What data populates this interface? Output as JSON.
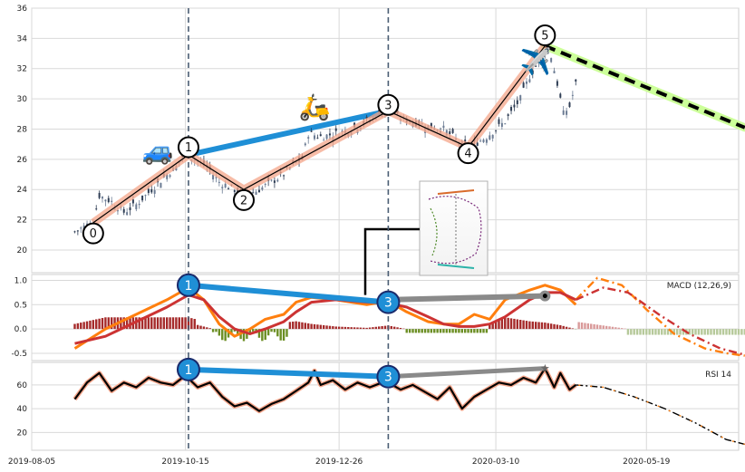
{
  "chart_data": [
    {
      "type": "candlestick",
      "title": "",
      "xlabel": "",
      "ylabel": "",
      "x_tick_labels": [
        "2019-08-05",
        "2019-10-15",
        "2019-12-26",
        "2020-03-10",
        "2020-05-19"
      ],
      "y_ticks": [
        20,
        22,
        24,
        26,
        28,
        30,
        32,
        34,
        36
      ],
      "ylim": [
        18.5,
        36
      ],
      "grid": true,
      "close_path": [
        [
          0,
          21.2
        ],
        [
          6,
          21.9
        ],
        [
          8,
          23.6
        ],
        [
          12,
          23.2
        ],
        [
          16,
          22.5
        ],
        [
          20,
          23.0
        ],
        [
          25,
          24.0
        ],
        [
          30,
          25.0
        ],
        [
          33,
          25.5
        ],
        [
          36,
          26.5
        ],
        [
          39,
          26.0
        ],
        [
          43,
          25.5
        ],
        [
          47,
          24.5
        ],
        [
          52,
          24.0
        ],
        [
          56,
          23.6
        ],
        [
          60,
          24.0
        ],
        [
          64,
          24.5
        ],
        [
          68,
          25.0
        ],
        [
          72,
          25.8
        ],
        [
          74,
          26.0
        ],
        [
          76,
          27.7
        ],
        [
          80,
          27.5
        ],
        [
          85,
          27.7
        ],
        [
          90,
          28.0
        ],
        [
          95,
          28.5
        ],
        [
          99,
          29.0
        ],
        [
          103,
          29.2
        ],
        [
          105,
          28.8
        ],
        [
          110,
          28.5
        ],
        [
          115,
          28.2
        ],
        [
          120,
          28.0
        ],
        [
          123,
          27.5
        ],
        [
          127,
          26.8
        ],
        [
          130,
          27.0
        ],
        [
          134,
          27.5
        ],
        [
          140,
          28.5
        ],
        [
          145,
          30.0
        ],
        [
          148,
          31.5
        ],
        [
          151,
          32.5
        ],
        [
          153,
          33.3
        ],
        [
          155,
          32.8
        ],
        [
          157,
          31.0
        ],
        [
          159,
          29.0
        ],
        [
          161,
          29.5
        ],
        [
          163,
          31.0
        ]
      ],
      "wave_points": [
        {
          "label": "0",
          "date_index": 6,
          "value": 21.1
        },
        {
          "label": "1",
          "date_index": 37,
          "value": 26.8
        },
        {
          "label": "2",
          "date_index": 55,
          "value": 23.3
        },
        {
          "label": "3",
          "date_index": 102,
          "value": 29.6
        },
        {
          "label": "4",
          "date_index": 128,
          "value": 26.4
        },
        {
          "label": "5",
          "date_index": 153,
          "value": 34.2
        }
      ],
      "trend_line": [
        [
          37,
          26.3
        ],
        [
          102,
          29.2
        ]
      ],
      "projection": [
        [
          153,
          33.5
        ],
        [
          218,
          28.1
        ]
      ],
      "events": [
        {
          "icon": "car-icon",
          "glyph": "🚙",
          "date_index": 27,
          "value": 26.0
        },
        {
          "icon": "scooter-icon",
          "glyph": "🛵",
          "date_index": 78,
          "value": 28.9
        },
        {
          "icon": "airplane-icon",
          "glyph": "✈️",
          "date_index": 150,
          "value": 31.9
        }
      ],
      "vertical_markers": [
        37,
        102
      ]
    },
    {
      "type": "line",
      "label": "MACD (12,26,9)",
      "y_ticks": [
        -0.5,
        0.0,
        0.5,
        1.0
      ],
      "ylim": [
        -0.65,
        1.12
      ],
      "series": [
        {
          "color": "#ff7f0e",
          "values": [
            [
              0,
              -0.4
            ],
            [
              10,
              0.0
            ],
            [
              20,
              0.3
            ],
            [
              30,
              0.6
            ],
            [
              37,
              0.85
            ],
            [
              42,
              0.6
            ],
            [
              47,
              0.1
            ],
            [
              52,
              -0.15
            ],
            [
              57,
              0.0
            ],
            [
              62,
              0.2
            ],
            [
              68,
              0.3
            ],
            [
              72,
              0.55
            ],
            [
              77,
              0.65
            ],
            [
              85,
              0.6
            ],
            [
              95,
              0.5
            ],
            [
              102,
              0.57
            ],
            [
              108,
              0.35
            ],
            [
              115,
              0.15
            ],
            [
              120,
              0.1
            ],
            [
              125,
              0.1
            ],
            [
              130,
              0.3
            ],
            [
              135,
              0.2
            ],
            [
              140,
              0.6
            ],
            [
              148,
              0.8
            ],
            [
              153,
              0.9
            ],
            [
              158,
              0.8
            ],
            [
              163,
              0.5
            ]
          ]
        },
        {
          "color": "#cc3333",
          "values": [
            [
              0,
              -0.3
            ],
            [
              10,
              -0.15
            ],
            [
              20,
              0.15
            ],
            [
              30,
              0.45
            ],
            [
              37,
              0.7
            ],
            [
              42,
              0.6
            ],
            [
              47,
              0.25
            ],
            [
              52,
              0.0
            ],
            [
              57,
              -0.1
            ],
            [
              62,
              0.0
            ],
            [
              68,
              0.15
            ],
            [
              72,
              0.35
            ],
            [
              77,
              0.55
            ],
            [
              85,
              0.6
            ],
            [
              95,
              0.55
            ],
            [
              102,
              0.53
            ],
            [
              108,
              0.45
            ],
            [
              115,
              0.25
            ],
            [
              120,
              0.1
            ],
            [
              125,
              0.05
            ],
            [
              130,
              0.05
            ],
            [
              135,
              0.1
            ],
            [
              140,
              0.25
            ],
            [
              148,
              0.6
            ],
            [
              153,
              0.75
            ],
            [
              158,
              0.75
            ],
            [
              163,
              0.6
            ]
          ]
        }
      ],
      "histogram_color_pos": "#a52a2a",
      "histogram_color_neg": "#6b8e23",
      "projection": [
        {
          "color": "#ff7f0e",
          "style": "dash-dot",
          "values": [
            [
              163,
              0.6
            ],
            [
              170,
              1.05
            ],
            [
              178,
              0.9
            ],
            [
              186,
              0.4
            ],
            [
              195,
              -0.1
            ],
            [
              205,
              -0.4
            ],
            [
              212,
              -0.5
            ],
            [
              218,
              -0.55
            ]
          ]
        },
        {
          "color": "#cc3333",
          "style": "dash-dot",
          "values": [
            [
              163,
              0.6
            ],
            [
              172,
              0.85
            ],
            [
              180,
              0.75
            ],
            [
              190,
              0.3
            ],
            [
              200,
              -0.1
            ],
            [
              210,
              -0.4
            ],
            [
              218,
              -0.53
            ]
          ]
        }
      ],
      "divergence": [
        {
          "label": "1",
          "date_index": 37,
          "value": 0.9
        },
        {
          "label": "3",
          "date_index": 102,
          "value": 0.55
        }
      ],
      "trend_line": [
        [
          37,
          0.9
        ],
        [
          102,
          0.55
        ]
      ],
      "gray_line": [
        [
          102,
          0.6
        ],
        [
          153,
          0.68
        ]
      ]
    },
    {
      "type": "line",
      "label": "RSI 14",
      "y_ticks": [
        20,
        40,
        60
      ],
      "ylim": [
        5,
        79
      ],
      "series": [
        {
          "color": "#000000",
          "values": [
            [
              0,
              48
            ],
            [
              4,
              62
            ],
            [
              8,
              70
            ],
            [
              12,
              55
            ],
            [
              16,
              62
            ],
            [
              20,
              58
            ],
            [
              24,
              66
            ],
            [
              28,
              62
            ],
            [
              32,
              60
            ],
            [
              36,
              68
            ],
            [
              40,
              58
            ],
            [
              44,
              62
            ],
            [
              48,
              50
            ],
            [
              52,
              42
            ],
            [
              56,
              45
            ],
            [
              60,
              38
            ],
            [
              64,
              44
            ],
            [
              68,
              48
            ],
            [
              72,
              55
            ],
            [
              76,
              62
            ],
            [
              78,
              72
            ],
            [
              80,
              60
            ],
            [
              84,
              64
            ],
            [
              88,
              56
            ],
            [
              92,
              62
            ],
            [
              96,
              58
            ],
            [
              100,
              62
            ],
            [
              102,
              62
            ],
            [
              106,
              56
            ],
            [
              110,
              60
            ],
            [
              114,
              54
            ],
            [
              118,
              48
            ],
            [
              122,
              58
            ],
            [
              126,
              40
            ],
            [
              130,
              50
            ],
            [
              134,
              56
            ],
            [
              138,
              62
            ],
            [
              142,
              60
            ],
            [
              146,
              66
            ],
            [
              150,
              62
            ],
            [
              153,
              74
            ],
            [
              156,
              58
            ],
            [
              158,
              70
            ],
            [
              161,
              56
            ],
            [
              163,
              60
            ]
          ]
        }
      ],
      "projection": [
        {
          "color": "#ff7f0e",
          "style": "dash-dot",
          "values": [
            [
              163,
              60
            ],
            [
              172,
              58
            ],
            [
              182,
              50
            ],
            [
              192,
              40
            ],
            [
              202,
              28
            ],
            [
              212,
              14
            ],
            [
              218,
              10
            ]
          ]
        }
      ],
      "divergence": [
        {
          "label": "1",
          "date_index": 37,
          "value": 73
        },
        {
          "label": "3",
          "date_index": 102,
          "value": 67
        }
      ],
      "trend_line": [
        [
          37,
          73
        ],
        [
          102,
          67
        ]
      ],
      "gray_line": [
        [
          102,
          67
        ],
        [
          153,
          74
        ]
      ]
    }
  ]
}
